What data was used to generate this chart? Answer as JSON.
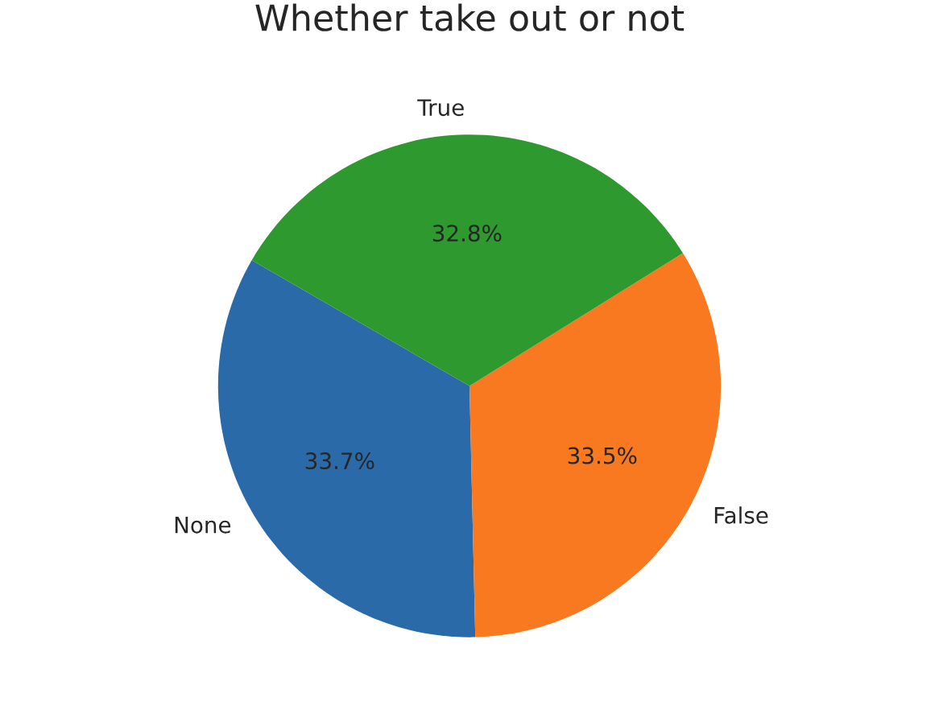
{
  "chart_data": {
    "type": "pie",
    "title": "Whether take out or not",
    "categories": [
      "None",
      "False",
      "True"
    ],
    "values": [
      33.7,
      33.5,
      32.8
    ],
    "colors": [
      "#2a6aa9",
      "#f97920",
      "#2e992e"
    ],
    "value_labels": [
      "33.7%",
      "33.5%",
      "32.8%"
    ]
  }
}
